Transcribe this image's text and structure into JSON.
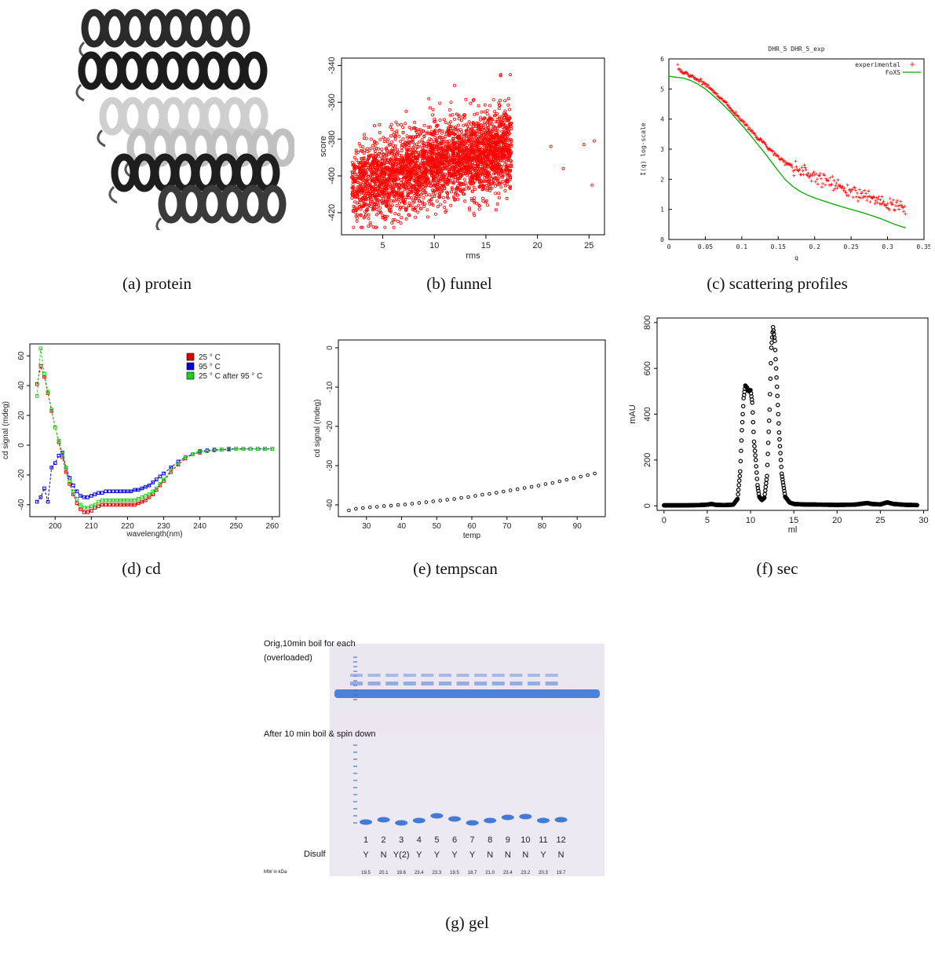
{
  "captions": {
    "a": "(a)  protein",
    "b": "(b)  funnel",
    "c": "(c)  scattering profiles",
    "d": "(d)  cd",
    "e": "(e)  tempscan",
    "f": "(f)  sec",
    "g": "(g)  gel"
  },
  "gel": {
    "top_label_1": "Orig,10min boil for each",
    "top_label_2": "(overloaded)",
    "bottom_label": "After 10 min boil & spin down",
    "disulf_label": "Disulf",
    "mw_label": "MW in kDa",
    "lanes": [
      "1",
      "2",
      "3",
      "4",
      "5",
      "6",
      "7",
      "8",
      "9",
      "10",
      "11",
      "12"
    ],
    "disulf": [
      "Y",
      "N",
      "Y(2)",
      "Y",
      "Y",
      "Y",
      "Y",
      "N",
      "N",
      "N",
      "Y",
      "N"
    ],
    "mw": [
      "19.5",
      "20.1",
      "19.6",
      "23.4",
      "23.3",
      "19.5",
      "18.7",
      "21.0",
      "23.4",
      "23.2",
      "20.3",
      "19.7"
    ],
    "colors": {
      "gel_bg": "#e9e4ee",
      "band": "#2f6fd4"
    }
  },
  "chart_data": [
    {
      "id": "funnel",
      "type": "scatter",
      "xlabel": "rms",
      "ylabel": "score",
      "xlim": [
        1,
        26.5
      ],
      "ylim": [
        -432,
        -336
      ],
      "xticks": [
        5,
        10,
        15,
        20,
        25
      ],
      "yticks": [
        -420,
        -400,
        -380,
        -360,
        -340
      ],
      "color": "#ff0000",
      "summary": {
        "dense_x_range": [
          2,
          17
        ],
        "dense_y_range": [
          -428,
          -355
        ],
        "outliers": [
          [
            25.5,
            -381
          ],
          [
            25.3,
            -405
          ],
          [
            22.5,
            -396
          ],
          [
            24.5,
            -383
          ],
          [
            21.3,
            -384
          ]
        ]
      }
    },
    {
      "id": "scattering",
      "type": "line",
      "title": "DHR_5 DHR_5_exp",
      "xlabel": "q",
      "ylabel": "I(q) log-scale",
      "xlim": [
        0,
        0.35
      ],
      "ylim": [
        0,
        6
      ],
      "xticks": [
        "0",
        "0.05",
        "0.1",
        "0.15",
        "0.2",
        "0.25",
        "0.3",
        "0.35"
      ],
      "yticks": [
        "0",
        "1",
        "2",
        "3",
        "4",
        "5",
        "6"
      ],
      "legend": "top-right",
      "series": [
        {
          "name": "experimental",
          "color": "#ff0000",
          "style": "plus",
          "x": [
            0.012,
            0.02,
            0.03,
            0.04,
            0.05,
            0.06,
            0.07,
            0.08,
            0.09,
            0.1,
            0.11,
            0.12,
            0.13,
            0.14,
            0.15,
            0.16,
            0.17,
            0.18,
            0.19,
            0.2,
            0.21,
            0.22,
            0.23,
            0.24,
            0.25,
            0.26,
            0.27,
            0.28,
            0.29,
            0.3,
            0.31,
            0.32,
            0.325
          ],
          "values": [
            5.7,
            5.55,
            5.45,
            5.3,
            5.15,
            4.95,
            4.72,
            4.48,
            4.22,
            3.95,
            3.68,
            3.42,
            3.2,
            2.95,
            2.72,
            2.55,
            2.42,
            2.3,
            2.2,
            2.1,
            2.0,
            1.9,
            1.8,
            1.7,
            1.6,
            1.5,
            1.42,
            1.35,
            1.28,
            1.2,
            1.15,
            1.1,
            1.05
          ]
        },
        {
          "name": "FoXS",
          "color": "#00aa00",
          "style": "line",
          "x": [
            0.0,
            0.02,
            0.03,
            0.04,
            0.05,
            0.06,
            0.07,
            0.08,
            0.09,
            0.1,
            0.11,
            0.12,
            0.13,
            0.14,
            0.15,
            0.16,
            0.17,
            0.18,
            0.19,
            0.2,
            0.21,
            0.22,
            0.23,
            0.24,
            0.25,
            0.26,
            0.27,
            0.28,
            0.29,
            0.3,
            0.31,
            0.32,
            0.325
          ],
          "values": [
            5.42,
            5.36,
            5.28,
            5.16,
            5.0,
            4.8,
            4.58,
            4.34,
            4.08,
            3.8,
            3.52,
            3.22,
            2.92,
            2.6,
            2.28,
            1.98,
            1.76,
            1.6,
            1.48,
            1.38,
            1.3,
            1.22,
            1.14,
            1.07,
            1.0,
            0.93,
            0.86,
            0.78,
            0.7,
            0.6,
            0.5,
            0.42,
            0.38
          ]
        }
      ]
    },
    {
      "id": "cd",
      "type": "line",
      "xlabel": "wavelength(nm)",
      "ylabel": "cd signal (mdeg)",
      "xlim": [
        193,
        262
      ],
      "ylim": [
        -48,
        68
      ],
      "xticks": [
        200,
        210,
        220,
        230,
        240,
        250,
        260
      ],
      "yticks": [
        -40,
        -20,
        0,
        20,
        40,
        60
      ],
      "legend": "top-right",
      "x": [
        195,
        196,
        197,
        198,
        199,
        200,
        201,
        202,
        203,
        204,
        205,
        206,
        207,
        208,
        209,
        210,
        211,
        212,
        213,
        214,
        215,
        216,
        217,
        218,
        219,
        220,
        221,
        222,
        223,
        224,
        225,
        226,
        227,
        228,
        229,
        230,
        232,
        234,
        236,
        238,
        240,
        242,
        244,
        246,
        248,
        250,
        252,
        254,
        256,
        258,
        260
      ],
      "series": [
        {
          "name": "25 ° C",
          "color": "#dd0000",
          "values": [
            41,
            53,
            46,
            35,
            23,
            12,
            2,
            -8,
            -18,
            -26,
            -33,
            -39,
            -43,
            -45,
            -45,
            -44,
            -42,
            -41,
            -40,
            -40,
            -40,
            -40,
            -40,
            -40,
            -40,
            -40,
            -40,
            -40,
            -39,
            -38,
            -37,
            -35,
            -33,
            -30,
            -27,
            -24,
            -18,
            -13,
            -9,
            -6,
            -5,
            -4,
            -3.5,
            -3,
            -3,
            -2.5,
            -2.5,
            -2.5,
            -2.5,
            -2.5,
            -2.5
          ]
        },
        {
          "name": "95 ° C",
          "color": "#0000dd",
          "values": [
            -38,
            -35,
            -29,
            -38,
            -15,
            -12,
            -7,
            -5,
            -15,
            -22,
            -27,
            -31,
            -34,
            -35,
            -35,
            -34,
            -33,
            -32,
            -32,
            -31,
            -31,
            -31,
            -31,
            -31,
            -31,
            -31,
            -31,
            -30,
            -30,
            -29,
            -28,
            -27,
            -25,
            -23,
            -21,
            -19,
            -15,
            -11,
            -8,
            -6,
            -4,
            -3.5,
            -3,
            -3,
            -2.5,
            -2.5,
            -2.5,
            -2.5,
            -2.5,
            -2.5,
            -2.5
          ]
        },
        {
          "name": "25 ° C after 95 ° C",
          "color": "#22cc22",
          "values": [
            33,
            65,
            48,
            36,
            24,
            12,
            3,
            -6,
            -15,
            -24,
            -31,
            -36,
            -40,
            -42,
            -42,
            -41,
            -40,
            -38,
            -37,
            -37,
            -37,
            -37,
            -37,
            -37,
            -37,
            -37,
            -37,
            -37,
            -36,
            -35,
            -34,
            -33,
            -31,
            -29,
            -26,
            -23,
            -17,
            -12,
            -8,
            -6,
            -4.5,
            -4,
            -3.5,
            -3,
            -3,
            -2.5,
            -2.5,
            -2.5,
            -2.5,
            -2.5,
            -2.5
          ]
        }
      ]
    },
    {
      "id": "tempscan",
      "type": "scatter",
      "xlabel": "temp",
      "ylabel": "cd signal (mdeg)",
      "xlim": [
        22,
        98
      ],
      "ylim": [
        -43,
        2
      ],
      "xticks": [
        30,
        40,
        50,
        60,
        70,
        80,
        90
      ],
      "yticks": [
        0,
        -10,
        -20,
        -30,
        -40
      ],
      "color": "#000000",
      "x": [
        25,
        27,
        29,
        31,
        33,
        35,
        37,
        39,
        41,
        43,
        45,
        47,
        49,
        51,
        53,
        55,
        57,
        59,
        61,
        63,
        65,
        67,
        69,
        71,
        73,
        75,
        77,
        79,
        81,
        83,
        85,
        87,
        89,
        91,
        93,
        95
      ],
      "values": [
        -41.4,
        -41.0,
        -40.8,
        -40.6,
        -40.5,
        -40.3,
        -40.2,
        -40.0,
        -39.9,
        -39.7,
        -39.5,
        -39.3,
        -39.1,
        -38.9,
        -38.7,
        -38.5,
        -38.2,
        -38.0,
        -37.7,
        -37.4,
        -37.2,
        -36.9,
        -36.6,
        -36.3,
        -36.0,
        -35.7,
        -35.4,
        -35.1,
        -34.7,
        -34.4,
        -34.0,
        -33.6,
        -33.2,
        -32.8,
        -32.4,
        -32.0
      ]
    },
    {
      "id": "sec",
      "type": "scatter",
      "xlabel": "ml",
      "ylabel": "mAU",
      "xlim": [
        -0.8,
        30.5
      ],
      "ylim": [
        -20,
        820
      ],
      "xticks": [
        0,
        5,
        10,
        15,
        20,
        25,
        30
      ],
      "yticks": [
        0,
        200,
        400,
        600,
        800
      ],
      "color": "#000000",
      "x": [
        0,
        2,
        4,
        5,
        5.5,
        6,
        7,
        8,
        8.5,
        8.8,
        9.0,
        9.2,
        9.4,
        9.6,
        9.8,
        10.0,
        10.2,
        10.4,
        10.6,
        10.8,
        11.0,
        11.3,
        11.6,
        11.9,
        12.2,
        12.4,
        12.6,
        12.8,
        13.0,
        13.3,
        13.6,
        14.0,
        14.5,
        15,
        16,
        18,
        20,
        22,
        23.5,
        24,
        25,
        25.8,
        26.5,
        28,
        29.3
      ],
      "values": [
        2,
        2,
        3,
        5,
        8,
        4,
        3,
        5,
        30,
        150,
        330,
        470,
        525,
        515,
        500,
        505,
        450,
        280,
        200,
        90,
        40,
        25,
        35,
        130,
        420,
        690,
        780,
        720,
        560,
        320,
        140,
        40,
        15,
        8,
        6,
        5,
        4,
        5,
        12,
        8,
        6,
        15,
        8,
        4,
        3
      ]
    }
  ]
}
